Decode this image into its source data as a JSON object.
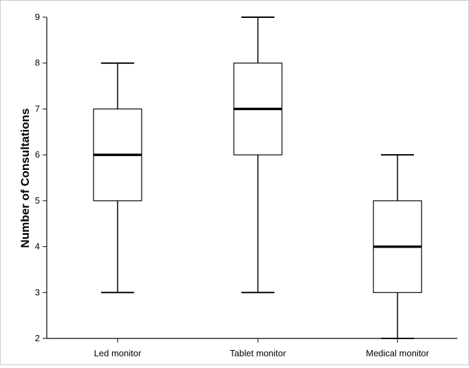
{
  "chart_data": {
    "type": "boxplot",
    "title": "",
    "xlabel": "",
    "ylabel": "Number of Consultations",
    "ylim": [
      2,
      9
    ],
    "yticks": [
      2,
      3,
      4,
      5,
      6,
      7,
      8,
      9
    ],
    "grid": false,
    "categories": [
      "Led monitor",
      "Tablet monitor",
      "Medical monitor"
    ],
    "boxes": [
      {
        "category": "Led monitor",
        "min": 3,
        "q1": 5,
        "median": 6,
        "q3": 7,
        "max": 8
      },
      {
        "category": "Tablet monitor",
        "min": 3,
        "q1": 6,
        "median": 7,
        "q3": 8,
        "max": 9
      },
      {
        "category": "Medical monitor",
        "min": 2,
        "q1": 3,
        "median": 4,
        "q3": 5,
        "max": 6
      }
    ],
    "colors": {
      "box_fill": "#ffffff",
      "box_stroke": "#000000",
      "median": "#000000",
      "axis": "#000000"
    }
  }
}
